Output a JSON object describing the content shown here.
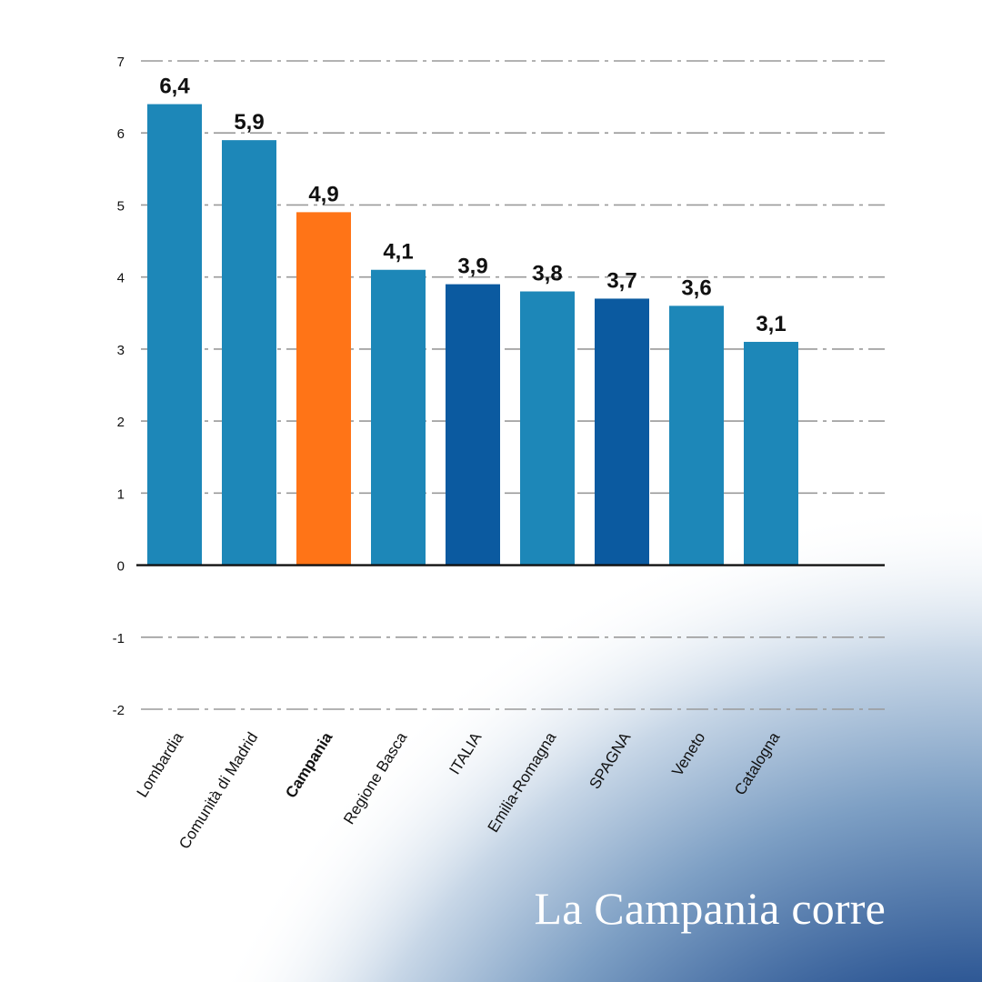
{
  "caption": "La Campania corre",
  "colors": {
    "bar_default": "#1d87b8",
    "bar_national": "#0b5aa0",
    "bar_highlight": "#ff7417",
    "grid": "#9a9a9a",
    "axis": "#111111",
    "text": "#111111"
  },
  "chart_data": {
    "type": "bar",
    "categories": [
      "Lombardia",
      "Comunità di Madrid",
      "Campania",
      "Regione Basca",
      "ITALIA",
      "Emilia-Romagna",
      "SPAGNA",
      "Veneto",
      "Catalogna"
    ],
    "values": [
      6.4,
      5.9,
      4.9,
      4.1,
      3.9,
      3.8,
      3.7,
      3.6,
      3.1
    ],
    "data_labels": [
      "6,4",
      "5,9",
      "4,9",
      "4,1",
      "3,9",
      "3,8",
      "3,7",
      "3,6",
      "3,1"
    ],
    "bar_kind": [
      "default",
      "default",
      "highlight",
      "default",
      "national",
      "default",
      "national",
      "default",
      "default"
    ],
    "bold_categories": [
      "Campania"
    ],
    "ylim": [
      -2,
      7
    ],
    "yticks": [
      -2,
      -1,
      0,
      1,
      2,
      3,
      4,
      5,
      6,
      7
    ],
    "grid": true,
    "title": "",
    "xlabel": "",
    "ylabel": ""
  }
}
